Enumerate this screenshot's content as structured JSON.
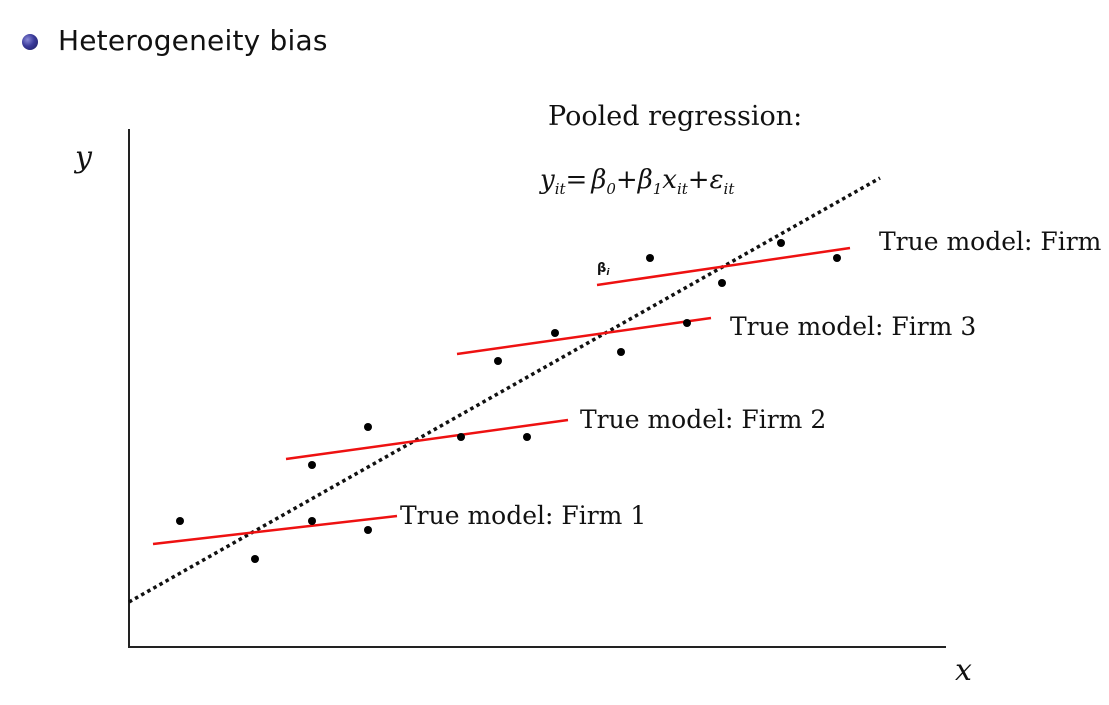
{
  "bullet": {
    "text": "Heterogeneity bias",
    "color": "#2e2e88"
  },
  "title": "Pooled regression:",
  "equation": {
    "y": "y",
    "y_sub": "it",
    "eq_sign": "=",
    "b0": "β",
    "b0_sub": "0",
    "plus1": "+",
    "b1": "β",
    "b1_sub": "1",
    "x": "x",
    "x_sub": "it",
    "plus2": "+",
    "eps": "ε",
    "eps_sub": "it"
  },
  "axes": {
    "x_label": "x",
    "y_label": "y"
  },
  "beta_label": "β",
  "beta_label_sub": "i",
  "firms": [
    {
      "label": "True model: Firm 1"
    },
    {
      "label": "True model: Firm 2"
    },
    {
      "label": "True model: Firm 3"
    },
    {
      "label": "True model: Firm"
    }
  ],
  "colors": {
    "firm_line": "#ee1111",
    "pooled_line": "#111111",
    "axis": "#222222",
    "point": "#000000"
  }
}
